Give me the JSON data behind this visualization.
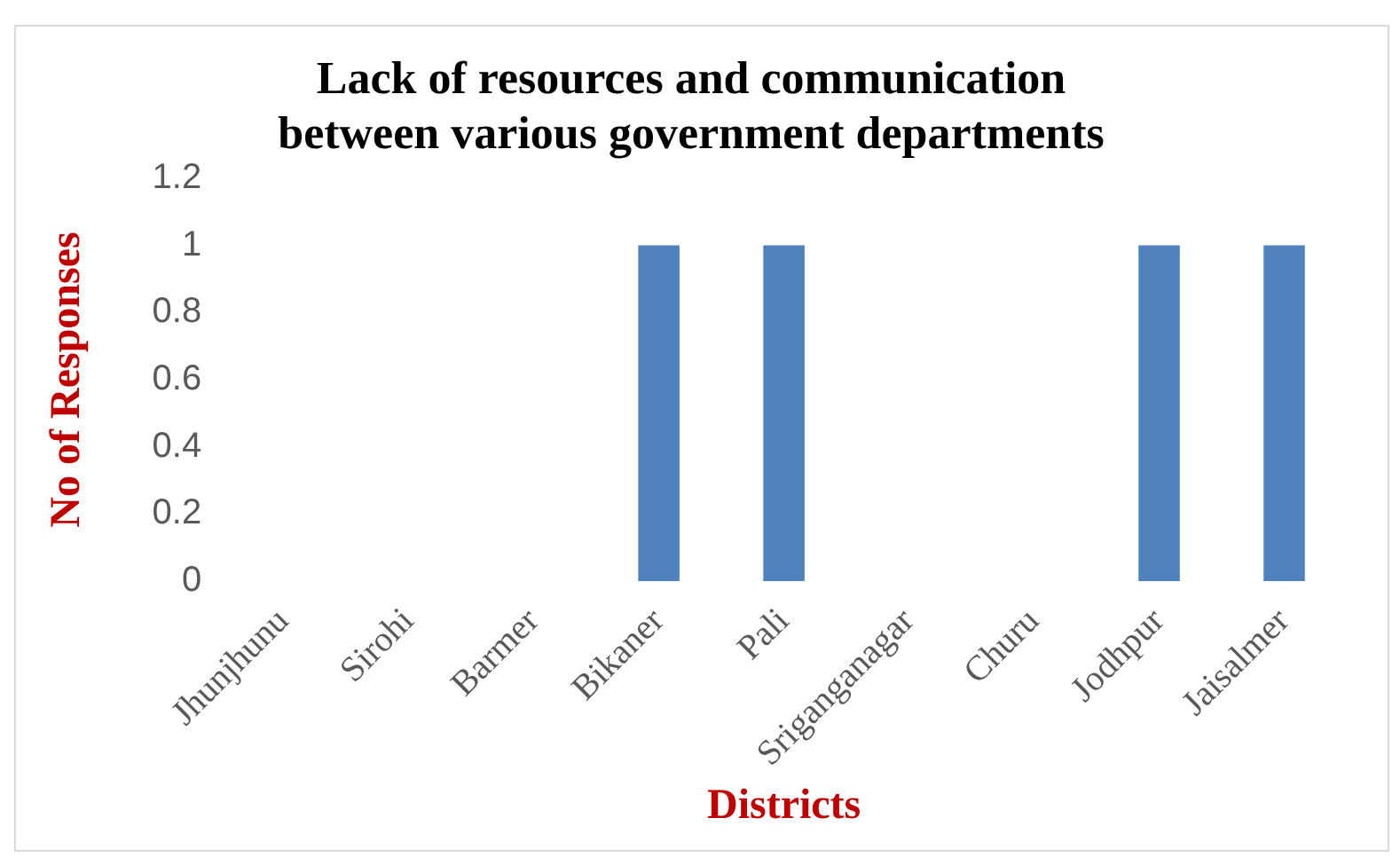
{
  "chart_data": {
    "type": "bar",
    "title": "Lack of resources and communication between various government departments",
    "xlabel": "Districts",
    "ylabel": "No of Responses",
    "categories": [
      "Jhunjhunu",
      "Sirohi",
      "Barmer",
      "Bikaner",
      "Pali",
      "Sriganganagar",
      "Churu",
      "Jodhpur",
      "Jaisalmer"
    ],
    "values": [
      0,
      0,
      0,
      1,
      1,
      0,
      0,
      1,
      1
    ],
    "color": "#4f81bd",
    "ylim": [
      0,
      1.2
    ],
    "yticks": [
      0,
      0.2,
      0.4,
      0.6,
      0.8,
      1,
      1.2
    ],
    "grid": false,
    "legend": false
  }
}
